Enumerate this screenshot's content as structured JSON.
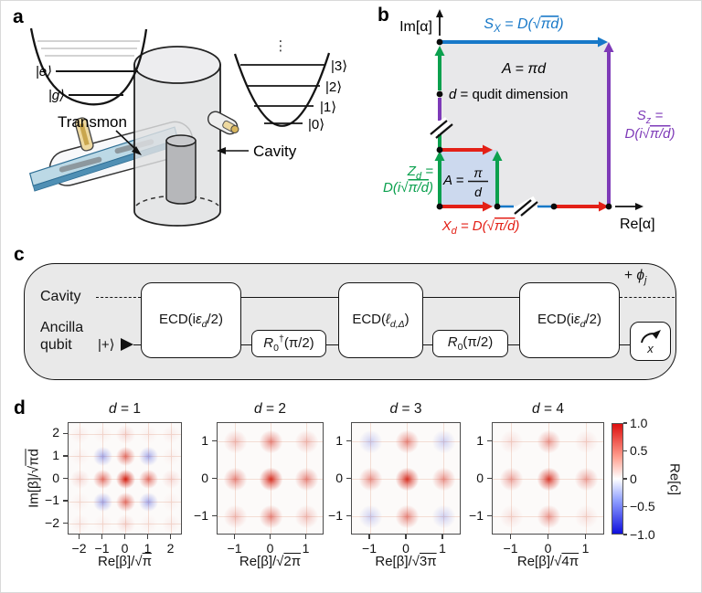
{
  "panel_a": {
    "letter": "a",
    "excited_label": "|e⟩",
    "ground_label": "|g⟩",
    "transmon_label": "Transmon",
    "cavity_label": "Cavity",
    "fock_labels": [
      "|0⟩",
      "|1⟩",
      "|2⟩",
      "|3⟩"
    ],
    "ellipsis": "⋮"
  },
  "panel_b": {
    "letter": "b",
    "im_axis": "Im[α]",
    "re_axis": "Re[α]",
    "sx": {
      "var": "S",
      "sub": "X",
      "mid": " = D(√",
      "rad": "πd",
      "post": ")"
    },
    "sz": {
      "var": "S",
      "sub": "z",
      "mid": " =",
      "l2pre": "D(i√",
      "rad": "π/d",
      "post": ")"
    },
    "zd": {
      "var": "Z",
      "sub": "d",
      "mid": " =",
      "l2pre": "D(i√",
      "rad": "π/d",
      "post": ")"
    },
    "xd": {
      "var": "X",
      "sub": "d",
      "mid": " = D(√",
      "rad": "π/d",
      "post": ")"
    },
    "area_big_var": "A",
    "area_big_rest": " = πd",
    "qudit_var": "d",
    "qudit_rest": " = qudit dimension",
    "area_small_pre": "A =",
    "area_small_num": "π",
    "area_small_den": "d",
    "colors": {
      "sx": "#1778c8",
      "sz": "#7e3ab8",
      "zd": "#0ba04e",
      "xd": "#e32017"
    }
  },
  "panel_c": {
    "letter": "c",
    "cavity_label": "Cavity",
    "ancilla_line1": "Ancilla",
    "ancilla_line2": "qubit",
    "plus_state": "|+⟩",
    "gates": {
      "ecd1": {
        "pre": "ECD(i",
        "var": "ε",
        "sub": "d",
        "post": "/2)"
      },
      "r_dag": {
        "var": "R",
        "sub": "0",
        "sup": "†",
        "post": "(π/2)"
      },
      "ecd_mid": {
        "pre": "ECD(",
        "var": "ℓ",
        "sub": "d,Δ",
        "post": ")"
      },
      "r": {
        "var": "R",
        "sub": "0",
        "post": "(π/2)"
      },
      "ecd2": {
        "pre": "ECD(i",
        "var": "ε",
        "sub": "d",
        "post": "/2)"
      }
    },
    "measure_label": "x",
    "phase": {
      "pre": "+ ",
      "var": "ϕ",
      "sub": "j"
    }
  },
  "chart_data": {
    "type": "heatmap",
    "ylabel_pre": "Im[β]/√",
    "ylabel_rad": "πd",
    "plots": [
      {
        "title_var": "d",
        "title_rest": " = 1",
        "xlabel_pre": "Re[β]/√",
        "xlabel_rad": "π",
        "x_ticks": [
          -2,
          -1,
          0,
          1,
          2
        ],
        "y_ticks": [
          2,
          1,
          0,
          -1,
          -2
        ],
        "xlim": [
          -2.5,
          2.5
        ],
        "ylim": [
          -2.5,
          2.5
        ],
        "points": [
          {
            "x": 0,
            "y": 0,
            "v": 1.0
          },
          {
            "x": 1,
            "y": 0,
            "v": 0.6
          },
          {
            "x": -1,
            "y": 0,
            "v": 0.6
          },
          {
            "x": 0,
            "y": 1,
            "v": 0.6
          },
          {
            "x": 0,
            "y": -1,
            "v": 0.6
          },
          {
            "x": 1,
            "y": 1,
            "v": -0.4
          },
          {
            "x": -1,
            "y": 1,
            "v": -0.4
          },
          {
            "x": 1,
            "y": -1,
            "v": -0.4
          },
          {
            "x": -1,
            "y": -1,
            "v": -0.4
          },
          {
            "x": 2,
            "y": 0,
            "v": 0.15
          },
          {
            "x": -2,
            "y": 0,
            "v": 0.15
          },
          {
            "x": 0,
            "y": 2,
            "v": 0.15
          },
          {
            "x": 0,
            "y": -2,
            "v": 0.15
          },
          {
            "x": 2,
            "y": 2,
            "v": 0.06
          },
          {
            "x": -2,
            "y": 2,
            "v": 0.06
          },
          {
            "x": 2,
            "y": -2,
            "v": 0.06
          },
          {
            "x": -2,
            "y": -2,
            "v": 0.06
          },
          {
            "x": 2,
            "y": 1,
            "v": 0.05
          },
          {
            "x": -2,
            "y": 1,
            "v": 0.05
          },
          {
            "x": 2,
            "y": -1,
            "v": 0.05
          },
          {
            "x": -2,
            "y": -1,
            "v": 0.05
          },
          {
            "x": 1,
            "y": 2,
            "v": 0.05
          },
          {
            "x": -1,
            "y": 2,
            "v": 0.05
          },
          {
            "x": 1,
            "y": -2,
            "v": 0.05
          },
          {
            "x": -1,
            "y": -2,
            "v": 0.05
          }
        ]
      },
      {
        "title_var": "d",
        "title_rest": " = 2",
        "xlabel_pre": "Re[β]/√",
        "xlabel_rad": "2π",
        "x_ticks": [
          -1,
          0,
          1
        ],
        "y_ticks": [
          1,
          0,
          -1
        ],
        "xlim": [
          -1.5,
          1.5
        ],
        "ylim": [
          -1.5,
          1.5
        ],
        "points": [
          {
            "x": 0,
            "y": 0,
            "v": 0.9
          },
          {
            "x": 1,
            "y": 0,
            "v": 0.5
          },
          {
            "x": -1,
            "y": 0,
            "v": 0.5
          },
          {
            "x": 0,
            "y": 1,
            "v": 0.5
          },
          {
            "x": 0,
            "y": -1,
            "v": 0.5
          },
          {
            "x": 1,
            "y": 1,
            "v": 0.25
          },
          {
            "x": -1,
            "y": 1,
            "v": 0.25
          },
          {
            "x": 1,
            "y": -1,
            "v": 0.25
          },
          {
            "x": -1,
            "y": -1,
            "v": 0.25
          }
        ]
      },
      {
        "title_var": "d",
        "title_rest": " = 3",
        "xlabel_pre": "Re[β]/√",
        "xlabel_rad": "3π",
        "x_ticks": [
          -1,
          0,
          1
        ],
        "y_ticks": [
          1,
          0,
          -1
        ],
        "xlim": [
          -1.5,
          1.5
        ],
        "ylim": [
          -1.5,
          1.5
        ],
        "points": [
          {
            "x": 0,
            "y": 0,
            "v": 0.9
          },
          {
            "x": 1,
            "y": 0,
            "v": 0.45
          },
          {
            "x": -1,
            "y": 0,
            "v": 0.45
          },
          {
            "x": 0,
            "y": 1,
            "v": 0.5
          },
          {
            "x": 0,
            "y": -1,
            "v": 0.5
          },
          {
            "x": 1,
            "y": 1,
            "v": -0.22
          },
          {
            "x": -1,
            "y": 1,
            "v": -0.22
          },
          {
            "x": 1,
            "y": -1,
            "v": -0.22
          },
          {
            "x": -1,
            "y": -1,
            "v": -0.22
          }
        ]
      },
      {
        "title_var": "d",
        "title_rest": " = 4",
        "xlabel_pre": "Re[β]/√",
        "xlabel_rad": "4π",
        "x_ticks": [
          -1,
          0,
          1
        ],
        "y_ticks": [
          1,
          0,
          -1
        ],
        "xlim": [
          -1.5,
          1.5
        ],
        "ylim": [
          -1.5,
          1.5
        ],
        "points": [
          {
            "x": 0,
            "y": 0,
            "v": 0.85
          },
          {
            "x": 1,
            "y": 0,
            "v": 0.38
          },
          {
            "x": -1,
            "y": 0,
            "v": 0.38
          },
          {
            "x": 0,
            "y": 1,
            "v": 0.42
          },
          {
            "x": 0,
            "y": -1,
            "v": 0.42
          },
          {
            "x": 1,
            "y": 1,
            "v": 0.12
          },
          {
            "x": -1,
            "y": 1,
            "v": 0.12
          },
          {
            "x": 1,
            "y": -1,
            "v": 0.12
          },
          {
            "x": -1,
            "y": -1,
            "v": 0.12
          }
        ]
      }
    ],
    "colorbar": {
      "ticks": [
        "1.0",
        "0.5",
        "0",
        "−0.5",
        "−1.0"
      ],
      "label": "Re[c]",
      "max": 1.0,
      "min": -1.0,
      "positive_color": "#d32012",
      "negative_color": "#2a3ad6"
    }
  }
}
